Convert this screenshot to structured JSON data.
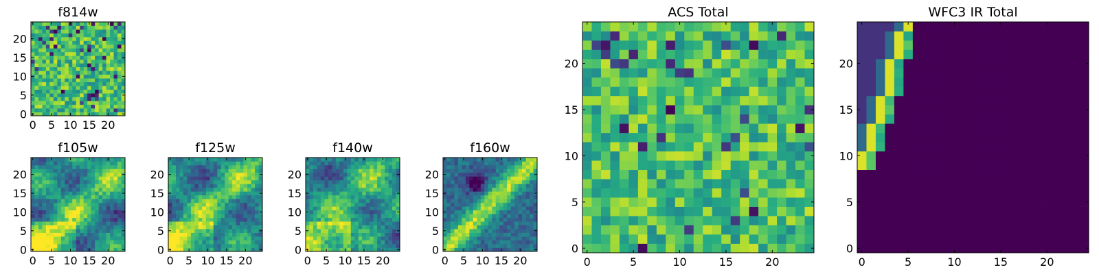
{
  "chart_data": [
    {
      "id": "f814w",
      "type": "heatmap",
      "title": "f814w",
      "pattern": "noise",
      "grid_size": 25,
      "xlim": [
        -0.5,
        24.5
      ],
      "ylim": [
        -0.5,
        24.5
      ],
      "xticks": [
        0,
        5,
        10,
        15,
        20
      ],
      "yticks": [
        0,
        5,
        10,
        15,
        20
      ],
      "colormap": "viridis"
    },
    {
      "id": "f105w",
      "type": "heatmap",
      "title": "f105w",
      "pattern": "smooth",
      "grid_size": 25,
      "xlim": [
        -0.5,
        24.5
      ],
      "ylim": [
        -0.5,
        24.5
      ],
      "xticks": [
        0,
        5,
        10,
        15,
        20
      ],
      "yticks": [
        0,
        5,
        10,
        15,
        20
      ],
      "colormap": "viridis"
    },
    {
      "id": "f125w",
      "type": "heatmap",
      "title": "f125w",
      "pattern": "smooth",
      "grid_size": 25,
      "xlim": [
        -0.5,
        24.5
      ],
      "ylim": [
        -0.5,
        24.5
      ],
      "xticks": [
        0,
        5,
        10,
        15,
        20
      ],
      "yticks": [
        0,
        5,
        10,
        15,
        20
      ],
      "colormap": "viridis"
    },
    {
      "id": "f140w",
      "type": "heatmap",
      "title": "f140w",
      "pattern": "smooth",
      "grid_size": 25,
      "xlim": [
        -0.5,
        24.5
      ],
      "ylim": [
        -0.5,
        24.5
      ],
      "xticks": [
        0,
        5,
        10,
        15,
        20
      ],
      "yticks": [
        0,
        5,
        10,
        15,
        20
      ],
      "colormap": "viridis"
    },
    {
      "id": "f160w",
      "type": "heatmap",
      "title": "f160w",
      "pattern": "diagonal",
      "grid_size": 25,
      "xlim": [
        -0.5,
        24.5
      ],
      "ylim": [
        -0.5,
        24.5
      ],
      "xticks": [
        0,
        5,
        10,
        15,
        20
      ],
      "yticks": [
        0,
        5,
        10,
        15,
        20
      ],
      "colormap": "viridis"
    },
    {
      "id": "acs_total",
      "type": "heatmap",
      "title": "ACS Total",
      "pattern": "noise",
      "grid_size": 25,
      "xlim": [
        -0.5,
        24.5
      ],
      "ylim": [
        -0.5,
        24.5
      ],
      "xticks": [
        0,
        5,
        10,
        15,
        20
      ],
      "yticks": [
        0,
        5,
        10,
        15,
        20
      ],
      "colormap": "viridis"
    },
    {
      "id": "wfc3_ir_total",
      "type": "heatmap",
      "title": "WFC3 IR Total",
      "pattern": "edge",
      "grid_size": 25,
      "xlim": [
        -0.5,
        24.5
      ],
      "ylim": [
        -0.5,
        24.5
      ],
      "xticks": [
        0,
        5,
        10,
        15,
        20
      ],
      "yticks": [
        0,
        5,
        10,
        15,
        20
      ],
      "colormap": "viridis"
    }
  ]
}
